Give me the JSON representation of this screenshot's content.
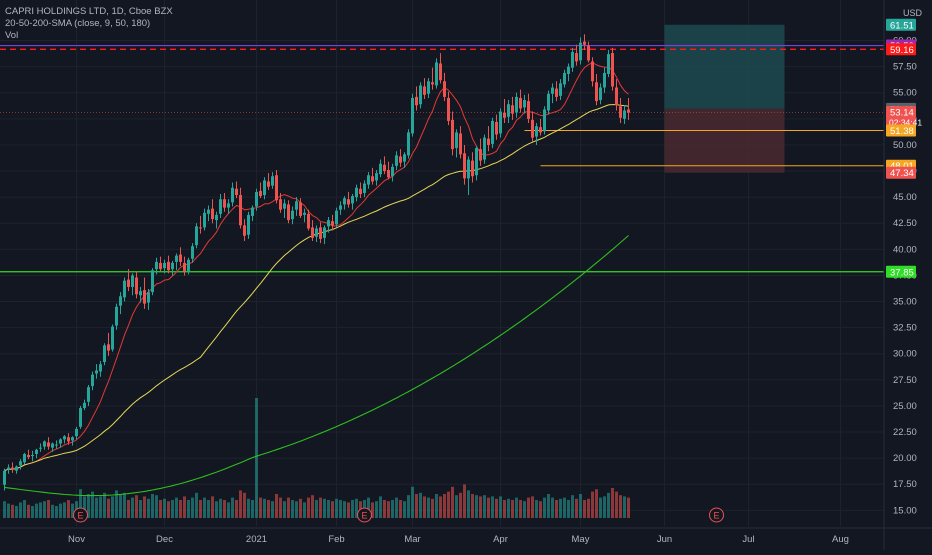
{
  "legend": {
    "symbol_line": "CAPRI HOLDINGS LTD, 1D, Cboe BZX",
    "sma_line": "20-50-200-SMA (close, 9, 50, 180)",
    "vol_line": "Vol"
  },
  "colors": {
    "background": "#131722",
    "grid": "#1e222d",
    "up": "#26a69a",
    "down": "#ef5350",
    "sma9": "#e53935",
    "sma50": "#e6d756",
    "sma180": "#2fbf1f",
    "support": "#2fdc26",
    "purple_line": "#7b3fe4",
    "red_dashed": "#ff1a1a",
    "orange": "#f5a623",
    "target_zone": "#1d4a4f",
    "stop_zone": "#4a2a2f"
  },
  "chart_data": {
    "type": "candlestick",
    "title": "CAPRI HOLDINGS LTD, 1D, Cboe BZX",
    "indicators": [
      "SMA 9",
      "SMA 50",
      "SMA 180",
      "Vol"
    ],
    "currency": "USD",
    "ylim": [
      13.5,
      63.5
    ],
    "x_tick_labels": [
      "Nov",
      "Dec",
      "2021",
      "Feb",
      "Mar",
      "Apr",
      "May",
      "Jun",
      "Jul",
      "Aug"
    ],
    "x_tick_index": [
      18,
      40,
      63,
      83,
      102,
      124,
      144,
      165,
      186,
      209
    ],
    "y_ticks": [
      15.0,
      17.5,
      20.0,
      22.5,
      25.0,
      27.5,
      30.0,
      32.5,
      35.0,
      37.5,
      40.0,
      42.5,
      45.0,
      47.5,
      50.0,
      52.5,
      55.0,
      57.5,
      60.0
    ],
    "price_labels": [
      {
        "value": 61.51,
        "text": "61.51",
        "color": "#26a69a"
      },
      {
        "value": 59.52,
        "text": "59.52",
        "color": "#9c27b0"
      },
      {
        "value": 59.16,
        "text": "59.16",
        "color": "#ff1a1a"
      },
      {
        "value": 53.46,
        "text": "53.46",
        "color": "#5d606b"
      },
      {
        "value": 53.14,
        "text": "53.14",
        "color": "#ef5350",
        "subtext": "02:34:41"
      },
      {
        "value": 51.38,
        "text": "51.38",
        "color": "#f5a623"
      },
      {
        "value": 48.01,
        "text": "48.01",
        "color": "#f5a623"
      },
      {
        "value": 47.34,
        "text": "47.34",
        "color": "#ef5350"
      },
      {
        "value": 37.85,
        "text": "37.85",
        "color": "#2fdc26"
      }
    ],
    "horizontal_lines": [
      {
        "value": 59.52,
        "style": "solid",
        "color": "#7b3fe4"
      },
      {
        "value": 59.16,
        "style": "dashed",
        "color": "#ff1a1a"
      },
      {
        "value": 37.85,
        "style": "solid",
        "color": "#2fdc26"
      }
    ],
    "ray_lines": [
      {
        "value": 51.38,
        "from_index": 130,
        "color": "#f5a623"
      },
      {
        "value": 48.01,
        "from_index": 134,
        "color": "#f5a623"
      }
    ],
    "position_tool": {
      "from_index": 165,
      "to_index": 195,
      "entry": 53.46,
      "target": 61.51,
      "stop": 47.34
    },
    "candles_ohlc": [
      [
        17.45,
        19.0,
        16.9,
        18.8
      ],
      [
        18.9,
        19.4,
        18.5,
        19.1
      ],
      [
        19.1,
        19.6,
        18.6,
        18.9
      ],
      [
        18.8,
        19.3,
        18.5,
        19.2
      ],
      [
        19.3,
        19.9,
        18.9,
        19.7
      ],
      [
        19.6,
        20.5,
        19.4,
        20.4
      ],
      [
        20.3,
        20.8,
        19.9,
        20.1
      ],
      [
        20.2,
        20.7,
        19.7,
        20.3
      ],
      [
        20.4,
        20.9,
        20.0,
        20.8
      ],
      [
        20.9,
        21.4,
        20.6,
        21.0
      ],
      [
        21.1,
        21.7,
        20.8,
        21.6
      ],
      [
        21.5,
        22.0,
        20.8,
        21.1
      ],
      [
        21.0,
        21.5,
        20.6,
        21.4
      ],
      [
        21.3,
        21.7,
        20.9,
        21.3
      ],
      [
        21.4,
        21.9,
        21.0,
        21.8
      ],
      [
        21.8,
        22.2,
        21.4,
        22.1
      ],
      [
        22.0,
        22.4,
        21.3,
        21.6
      ],
      [
        21.7,
        22.1,
        21.2,
        22.0
      ],
      [
        22.1,
        23.0,
        21.8,
        22.8
      ],
      [
        23.0,
        25.0,
        22.8,
        24.8
      ],
      [
        24.8,
        25.6,
        24.6,
        25.3
      ],
      [
        25.4,
        27.0,
        25.0,
        26.8
      ],
      [
        26.9,
        28.3,
        26.5,
        28.0
      ],
      [
        28.1,
        29.0,
        27.6,
        28.4
      ],
      [
        28.3,
        29.3,
        27.8,
        29.0
      ],
      [
        29.2,
        31.0,
        28.9,
        30.8
      ],
      [
        30.9,
        32.0,
        29.8,
        30.3
      ],
      [
        30.4,
        32.8,
        30.2,
        32.6
      ],
      [
        32.7,
        34.8,
        32.3,
        34.5
      ],
      [
        34.6,
        35.9,
        33.8,
        35.5
      ],
      [
        35.4,
        37.3,
        35.0,
        37.0
      ],
      [
        37.1,
        38.1,
        36.0,
        36.4
      ],
      [
        36.4,
        37.7,
        35.6,
        37.5
      ],
      [
        37.3,
        37.9,
        35.3,
        35.7
      ],
      [
        35.6,
        36.4,
        34.9,
        36.0
      ],
      [
        36.1,
        37.3,
        34.3,
        34.8
      ],
      [
        34.9,
        36.2,
        34.2,
        35.9
      ],
      [
        35.9,
        38.2,
        35.6,
        38.0
      ],
      [
        38.1,
        39.2,
        37.6,
        38.8
      ],
      [
        38.7,
        39.3,
        37.9,
        38.1
      ],
      [
        38.2,
        39.0,
        37.7,
        38.7
      ],
      [
        38.8,
        39.4,
        37.7,
        38.0
      ],
      [
        38.1,
        38.9,
        37.5,
        38.7
      ],
      [
        38.8,
        39.6,
        38.0,
        39.4
      ],
      [
        39.5,
        40.2,
        38.4,
        38.8
      ],
      [
        38.7,
        39.3,
        37.5,
        37.9
      ],
      [
        37.9,
        39.2,
        37.6,
        39.0
      ],
      [
        39.1,
        40.6,
        38.7,
        40.3
      ],
      [
        40.4,
        42.5,
        40.1,
        42.2
      ],
      [
        42.1,
        43.2,
        41.5,
        42.0
      ],
      [
        42.1,
        43.9,
        41.8,
        43.5
      ],
      [
        43.4,
        44.2,
        42.7,
        43.8
      ],
      [
        43.9,
        44.8,
        42.5,
        42.9
      ],
      [
        42.8,
        43.6,
        42.0,
        43.3
      ],
      [
        43.4,
        45.3,
        43.0,
        44.8
      ],
      [
        44.8,
        45.4,
        43.6,
        44.0
      ],
      [
        44.0,
        44.8,
        43.4,
        44.4
      ],
      [
        44.5,
        46.4,
        44.1,
        45.9
      ],
      [
        45.8,
        46.5,
        44.9,
        45.2
      ],
      [
        45.2,
        45.9,
        42.0,
        42.3
      ],
      [
        42.3,
        42.9,
        40.8,
        41.3
      ],
      [
        41.4,
        43.6,
        41.0,
        43.3
      ],
      [
        43.2,
        44.2,
        42.7,
        44.0
      ],
      [
        44.1,
        45.8,
        43.7,
        45.5
      ],
      [
        45.6,
        46.4,
        44.9,
        45.1
      ],
      [
        45.2,
        46.9,
        44.8,
        46.6
      ],
      [
        46.5,
        47.3,
        45.7,
        46.0
      ],
      [
        46.1,
        47.4,
        45.8,
        47.0
      ],
      [
        47.1,
        47.6,
        44.4,
        44.7
      ],
      [
        44.8,
        45.4,
        43.5,
        43.8
      ],
      [
        43.9,
        44.8,
        43.0,
        44.4
      ],
      [
        44.3,
        44.7,
        42.5,
        42.8
      ],
      [
        42.9,
        44.1,
        42.4,
        43.7
      ],
      [
        43.8,
        45.0,
        43.2,
        44.6
      ],
      [
        44.5,
        44.9,
        43.0,
        43.2
      ],
      [
        43.3,
        43.9,
        42.6,
        43.5
      ],
      [
        43.4,
        43.8,
        41.8,
        42.0
      ],
      [
        42.1,
        42.8,
        40.8,
        41.1
      ],
      [
        41.2,
        42.3,
        40.7,
        42.0
      ],
      [
        42.1,
        42.6,
        40.6,
        41.0
      ],
      [
        41.1,
        42.3,
        40.5,
        42.1
      ],
      [
        42.2,
        43.1,
        41.6,
        42.8
      ],
      [
        42.7,
        43.3,
        41.8,
        42.3
      ],
      [
        42.4,
        44.0,
        42.1,
        43.7
      ],
      [
        43.8,
        44.6,
        43.3,
        44.2
      ],
      [
        44.3,
        45.1,
        43.8,
        44.9
      ],
      [
        44.8,
        45.5,
        44.0,
        44.3
      ],
      [
        44.4,
        45.3,
        43.8,
        45.1
      ],
      [
        45.0,
        46.2,
        44.6,
        45.9
      ],
      [
        45.8,
        46.4,
        44.9,
        45.3
      ],
      [
        45.4,
        46.6,
        45.0,
        46.3
      ],
      [
        46.2,
        47.4,
        45.8,
        47.1
      ],
      [
        47.0,
        47.8,
        46.2,
        46.5
      ],
      [
        46.6,
        47.6,
        46.1,
        47.3
      ],
      [
        47.2,
        48.6,
        46.9,
        48.2
      ],
      [
        48.1,
        48.9,
        47.2,
        47.5
      ],
      [
        47.6,
        48.4,
        46.7,
        46.9
      ],
      [
        47.0,
        48.2,
        46.5,
        47.9
      ],
      [
        48.0,
        49.4,
        47.6,
        49.0
      ],
      [
        48.9,
        49.6,
        47.9,
        48.3
      ],
      [
        48.4,
        49.3,
        47.8,
        49.1
      ],
      [
        49.0,
        51.5,
        48.7,
        51.2
      ],
      [
        51.1,
        54.9,
        50.8,
        54.5
      ],
      [
        54.6,
        55.6,
        53.3,
        53.8
      ],
      [
        53.9,
        56.0,
        53.5,
        55.7
      ],
      [
        55.6,
        56.4,
        54.4,
        54.8
      ],
      [
        54.9,
        56.4,
        54.5,
        56.1
      ],
      [
        56.0,
        57.4,
        55.3,
        55.8
      ],
      [
        55.7,
        58.3,
        55.4,
        57.9
      ],
      [
        57.8,
        58.8,
        55.9,
        56.2
      ],
      [
        56.1,
        56.9,
        54.2,
        54.6
      ],
      [
        54.5,
        55.1,
        51.9,
        52.3
      ],
      [
        52.4,
        53.2,
        49.0,
        49.6
      ],
      [
        49.7,
        51.5,
        48.8,
        51.2
      ],
      [
        51.1,
        51.8,
        48.7,
        49.1
      ],
      [
        49.2,
        50.0,
        46.2,
        46.8
      ],
      [
        46.8,
        48.9,
        45.2,
        48.6
      ],
      [
        48.5,
        49.3,
        46.4,
        47.0
      ],
      [
        47.1,
        49.9,
        46.6,
        49.7
      ],
      [
        49.6,
        50.6,
        48.0,
        48.5
      ],
      [
        48.6,
        51.0,
        48.2,
        50.7
      ],
      [
        50.6,
        51.8,
        49.4,
        50.0
      ],
      [
        50.1,
        52.6,
        49.7,
        52.3
      ],
      [
        52.2,
        52.9,
        50.5,
        51.0
      ],
      [
        51.1,
        53.5,
        50.7,
        53.2
      ],
      [
        53.1,
        54.4,
        52.1,
        52.6
      ],
      [
        52.7,
        54.3,
        52.1,
        53.9
      ],
      [
        53.8,
        54.6,
        52.4,
        53.0
      ],
      [
        53.1,
        55.0,
        52.6,
        54.6
      ],
      [
        54.5,
        55.3,
        53.1,
        53.5
      ],
      [
        53.6,
        54.8,
        53.0,
        54.3
      ],
      [
        54.2,
        54.9,
        52.1,
        52.5
      ],
      [
        52.4,
        53.2,
        50.3,
        50.7
      ],
      [
        50.8,
        52.1,
        50.0,
        51.8
      ],
      [
        51.7,
        52.5,
        50.9,
        51.2
      ],
      [
        51.3,
        53.7,
        51.0,
        53.4
      ],
      [
        53.3,
        55.2,
        52.9,
        54.9
      ],
      [
        54.9,
        55.9,
        54.0,
        55.5
      ],
      [
        55.4,
        56.1,
        54.2,
        54.6
      ],
      [
        54.7,
        56.3,
        54.3,
        55.9
      ],
      [
        55.8,
        57.2,
        55.5,
        56.9
      ],
      [
        56.8,
        57.8,
        56.1,
        57.5
      ],
      [
        57.4,
        59.3,
        57.0,
        58.9
      ],
      [
        58.8,
        59.6,
        57.6,
        58.0
      ],
      [
        58.1,
        60.3,
        57.7,
        59.8
      ],
      [
        59.9,
        60.6,
        59.1,
        59.6
      ],
      [
        59.5,
        59.9,
        57.9,
        58.1
      ],
      [
        58.0,
        58.4,
        55.6,
        56.1
      ],
      [
        56.0,
        56.8,
        53.8,
        54.2
      ],
      [
        54.3,
        55.9,
        53.9,
        55.5
      ],
      [
        55.5,
        57.4,
        55.0,
        56.9
      ],
      [
        56.8,
        59.1,
        56.5,
        58.7
      ],
      [
        58.8,
        59.3,
        55.2,
        55.6
      ],
      [
        55.5,
        56.3,
        53.3,
        53.8
      ],
      [
        53.7,
        54.5,
        52.1,
        52.6
      ],
      [
        52.5,
        53.8,
        52.0,
        53.3
      ],
      [
        53.4,
        54.5,
        52.4,
        53.1
      ]
    ],
    "volume_relative": [
      0.28,
      0.24,
      0.22,
      0.2,
      0.26,
      0.3,
      0.22,
      0.2,
      0.24,
      0.26,
      0.28,
      0.3,
      0.22,
      0.2,
      0.24,
      0.26,
      0.3,
      0.24,
      0.28,
      0.48,
      0.36,
      0.4,
      0.44,
      0.34,
      0.36,
      0.42,
      0.32,
      0.36,
      0.46,
      0.4,
      0.42,
      0.3,
      0.34,
      0.38,
      0.3,
      0.36,
      0.32,
      0.4,
      0.38,
      0.3,
      0.32,
      0.28,
      0.3,
      0.34,
      0.3,
      0.36,
      0.3,
      0.34,
      0.42,
      0.3,
      0.34,
      0.3,
      0.36,
      0.28,
      0.32,
      0.3,
      0.26,
      0.34,
      0.3,
      0.46,
      0.42,
      0.32,
      0.3,
      2.0,
      0.34,
      0.32,
      0.3,
      0.28,
      0.4,
      0.34,
      0.28,
      0.34,
      0.3,
      0.28,
      0.32,
      0.26,
      0.34,
      0.38,
      0.3,
      0.34,
      0.32,
      0.3,
      0.28,
      0.32,
      0.3,
      0.28,
      0.26,
      0.3,
      0.32,
      0.28,
      0.3,
      0.34,
      0.26,
      0.28,
      0.36,
      0.3,
      0.28,
      0.3,
      0.34,
      0.3,
      0.28,
      0.38,
      0.52,
      0.4,
      0.42,
      0.36,
      0.34,
      0.32,
      0.4,
      0.36,
      0.4,
      0.44,
      0.52,
      0.38,
      0.42,
      0.56,
      0.46,
      0.4,
      0.38,
      0.36,
      0.38,
      0.34,
      0.36,
      0.32,
      0.36,
      0.3,
      0.32,
      0.3,
      0.34,
      0.3,
      0.28,
      0.34,
      0.36,
      0.3,
      0.28,
      0.34,
      0.4,
      0.34,
      0.3,
      0.32,
      0.34,
      0.3,
      0.38,
      0.32,
      0.4,
      0.3,
      0.32,
      0.44,
      0.48,
      0.34,
      0.36,
      0.42,
      0.5,
      0.44,
      0.38,
      0.36,
      0.34
    ],
    "earnings_markers": [
      {
        "index": 19,
        "label": "E"
      },
      {
        "index": 90,
        "label": "E"
      },
      {
        "index": 178,
        "label": "E"
      }
    ]
  }
}
